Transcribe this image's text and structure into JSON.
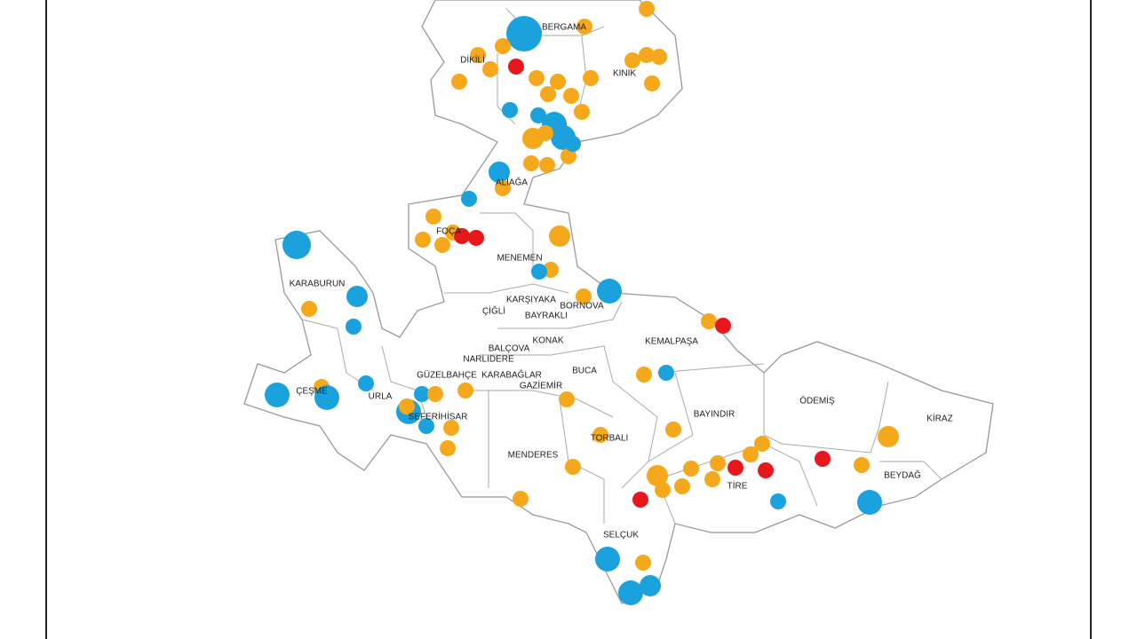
{
  "map": {
    "districts": [
      {
        "label": "BERGAMA"
      },
      {
        "label": "DİKİLİ"
      },
      {
        "label": "KINIK"
      },
      {
        "label": "ALİAĞA"
      },
      {
        "label": "FOÇA"
      },
      {
        "label": "MENEMEN"
      },
      {
        "label": "KARABURUN"
      },
      {
        "label": "KARŞIYAKA"
      },
      {
        "label": "ÇİĞLİ"
      },
      {
        "label": "BORNOVA"
      },
      {
        "label": "BAYRAKLI"
      },
      {
        "label": "KEMALPAŞA"
      },
      {
        "label": "KONAK"
      },
      {
        "label": "BALÇOVA"
      },
      {
        "label": "NARLIDERE"
      },
      {
        "label": "BUCA"
      },
      {
        "label": "GÜZELBAHÇE"
      },
      {
        "label": "KARABAĞLAR"
      },
      {
        "label": "GAZİEMİR"
      },
      {
        "label": "ÇEŞME"
      },
      {
        "label": "URLA"
      },
      {
        "label": "SEFERİHİSAR"
      },
      {
        "label": "BAYINDIR"
      },
      {
        "label": "ÖDEMİŞ"
      },
      {
        "label": "KİRAZ"
      },
      {
        "label": "TORBALI"
      },
      {
        "label": "MENDERES"
      },
      {
        "label": "TİRE"
      },
      {
        "label": "BEYDAĞ"
      },
      {
        "label": "SELÇUK"
      }
    ]
  }
}
